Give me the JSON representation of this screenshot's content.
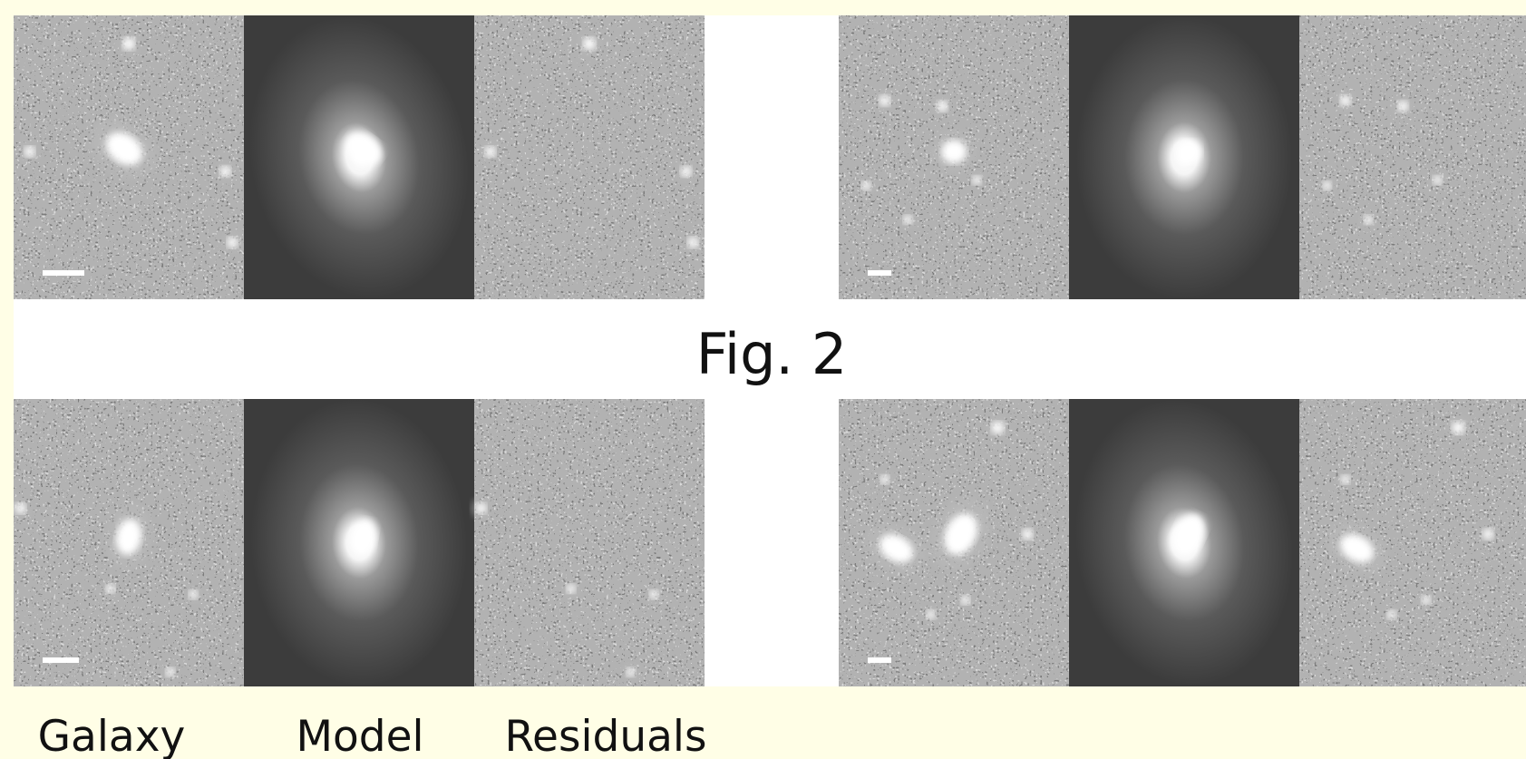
{
  "figure_label": "Fig. 2",
  "column_labels": [
    "Galaxy",
    "Model",
    "Residuals"
  ]
}
